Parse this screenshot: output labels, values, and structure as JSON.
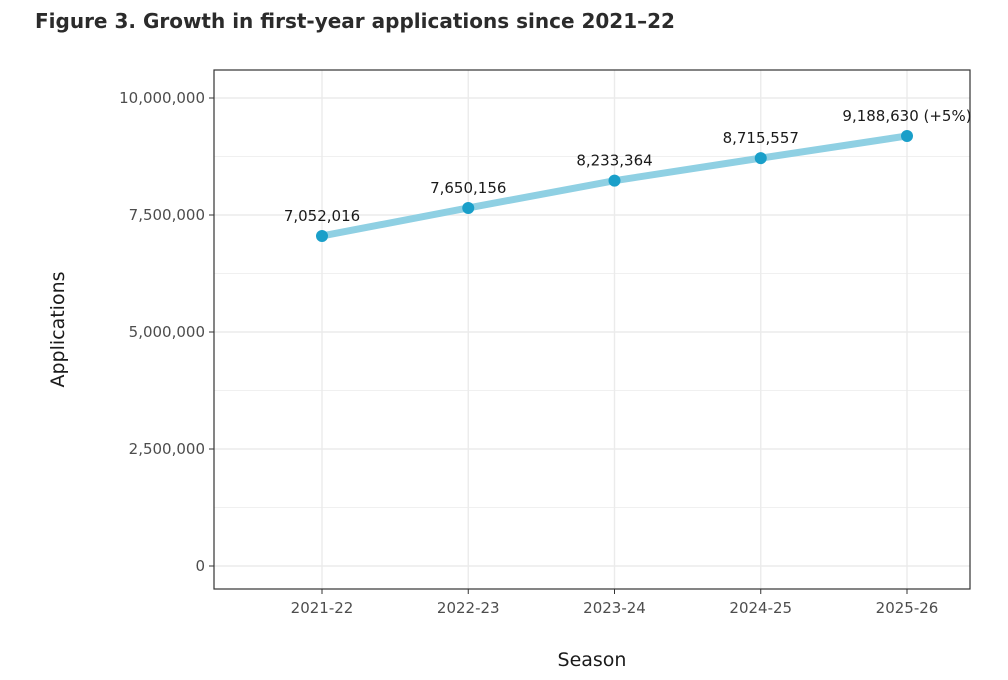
{
  "figure": {
    "title": "Figure 3. Growth in first-year applications since 2021–22"
  },
  "colors": {
    "line": "#8fd0e3",
    "point": "#1a9fc9",
    "grid": "#ebebeb",
    "panel_border": "#333333"
  },
  "chart_data": {
    "type": "line",
    "title": "Figure 3. Growth in first-year applications since 2021–22",
    "xlabel": "Season",
    "ylabel": "Applications",
    "categories": [
      "2021-22",
      "2022-23",
      "2023-24",
      "2024-25",
      "2025-26"
    ],
    "series": [
      {
        "name": "Applications",
        "values": [
          7052016,
          7650156,
          8233364,
          8715557,
          9188630
        ]
      }
    ],
    "data_labels": [
      "7,052,016",
      "7,650,156",
      "8,233,364",
      "8,715,557",
      "9,188,630 (+5%)"
    ],
    "ylim": [
      0,
      10000000
    ],
    "yticks": [
      0,
      2500000,
      5000000,
      7500000,
      10000000
    ],
    "ytick_labels": [
      "0",
      "2,500,000",
      "5,000,000",
      "7,500,000",
      "10,000,000"
    ],
    "grid": true,
    "legend": "none"
  }
}
